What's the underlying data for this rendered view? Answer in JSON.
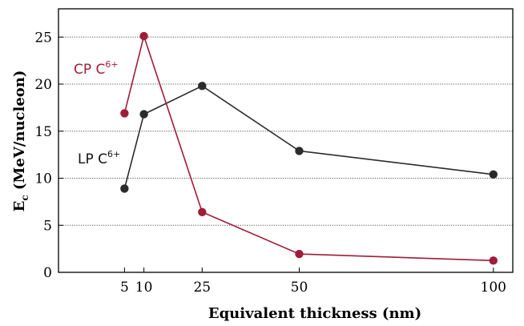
{
  "chart_data": {
    "type": "line",
    "xlabel": "Equivalent thickness (nm)",
    "ylabel_main": "E",
    "ylabel_sub": "c",
    "ylabel_rest": " (MeV/nucleon)",
    "xlim": [
      -12,
      105
    ],
    "ylim": [
      0,
      28
    ],
    "xticks": [
      5,
      10,
      25,
      50,
      100
    ],
    "yticks": [
      0,
      5,
      10,
      15,
      20,
      25
    ],
    "grid": "horizontal dotted",
    "series": [
      {
        "name": "CP C",
        "name_sup": "6+",
        "color": "#a01c38",
        "x": [
          5,
          10,
          25,
          50,
          100
        ],
        "y": [
          16.9,
          25.1,
          6.4,
          1.95,
          1.25
        ]
      },
      {
        "name": "LP C",
        "name_sup": "6+",
        "color": "#2b2b2b",
        "x": [
          5,
          10,
          25,
          50,
          100
        ],
        "y": [
          8.9,
          16.8,
          19.8,
          12.9,
          10.4
        ]
      }
    ]
  }
}
